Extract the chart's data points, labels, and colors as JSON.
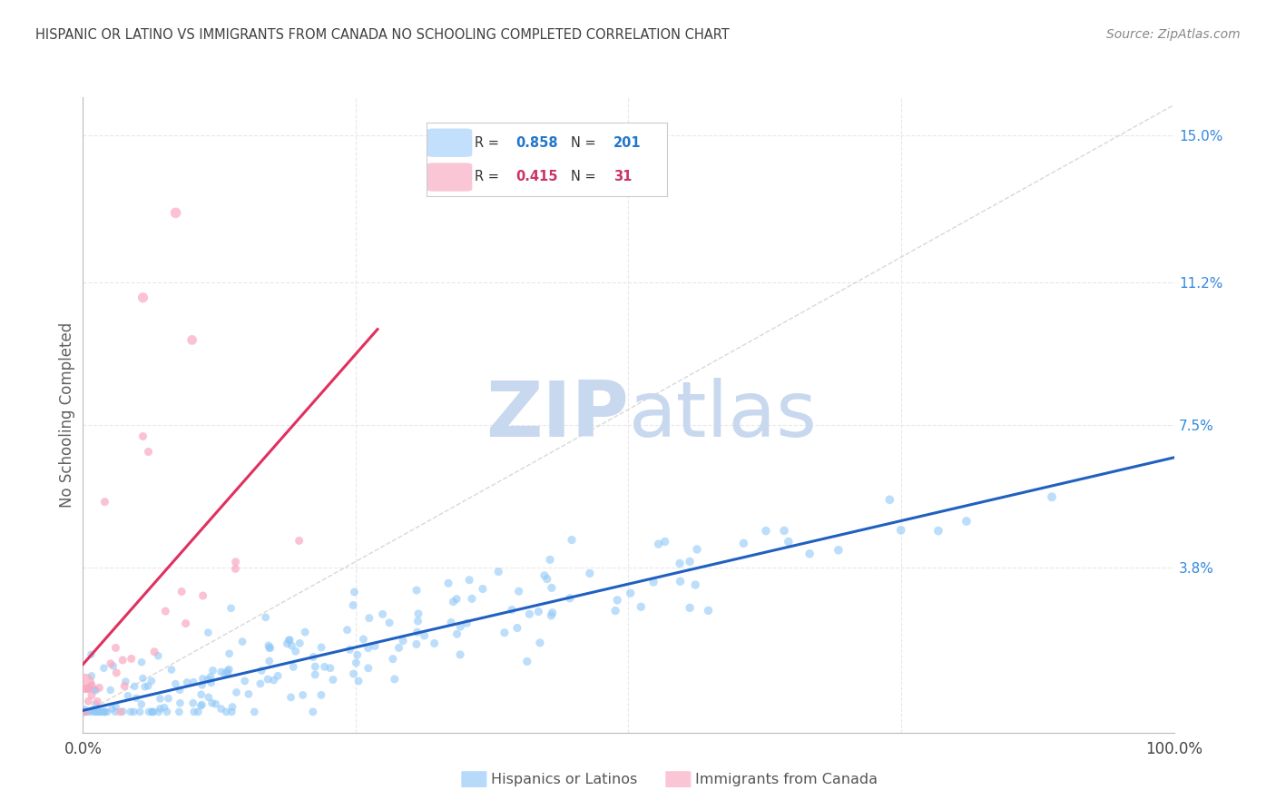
{
  "title": "HISPANIC OR LATINO VS IMMIGRANTS FROM CANADA NO SCHOOLING COMPLETED CORRELATION CHART",
  "source_text": "Source: ZipAtlas.com",
  "ylabel": "No Schooling Completed",
  "y_tick_labels_right": [
    "15.0%",
    "11.2%",
    "7.5%",
    "3.8%"
  ],
  "y_tick_values_right": [
    0.15,
    0.112,
    0.075,
    0.038
  ],
  "xlim": [
    0.0,
    1.0
  ],
  "ylim": [
    -0.005,
    0.16
  ],
  "watermark_zip": "ZIP",
  "watermark_atlas": "atlas",
  "watermark_color": "#c8d8ee",
  "blue_color": "#90c8f8",
  "pink_color": "#f8a8c0",
  "trend_blue_color": "#2060c0",
  "trend_pink_color": "#e03060",
  "diag_color": "#c8c8c8",
  "background_color": "#ffffff",
  "grid_color": "#e8e8e8",
  "title_color": "#404040",
  "axis_label_color": "#606060",
  "right_tick_color": "#3388dd",
  "legend_blue_r": "0.858",
  "legend_blue_n": "201",
  "legend_pink_r": "0.415",
  "legend_pink_n": "31",
  "legend_r_color": "#333333",
  "legend_val_blue_color": "#2277cc",
  "legend_val_pink_color": "#cc3366",
  "bottom_legend_color": "#555555",
  "source_color": "#888888"
}
